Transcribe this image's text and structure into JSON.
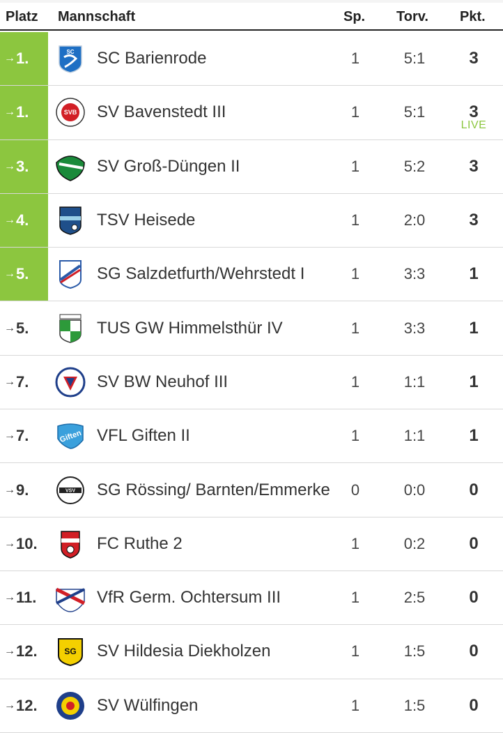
{
  "header": {
    "platz": "Platz",
    "mannschaft": "Mannschaft",
    "sp": "Sp.",
    "torv": "Torv.",
    "pkt": "Pkt."
  },
  "colors": {
    "promotion": "#8cc63f",
    "live": "#8cc63f"
  },
  "arrow": "→",
  "rows": [
    {
      "rank": "1.",
      "team": "SC Barienrode",
      "sp": "1",
      "torv": "5:1",
      "pkt": "3",
      "live": "",
      "promo": true,
      "logo": "sc-barienrode-crest-icon"
    },
    {
      "rank": "1.",
      "team": "SV Bavenstedt III",
      "sp": "1",
      "torv": "5:1",
      "pkt": "3",
      "live": "LIVE",
      "promo": true,
      "logo": "sv-bavenstedt-crest-icon"
    },
    {
      "rank": "3.",
      "team": "SV Groß-Düngen II",
      "sp": "1",
      "torv": "5:2",
      "pkt": "3",
      "live": "",
      "promo": true,
      "logo": "sv-gross-duengen-crest-icon"
    },
    {
      "rank": "4.",
      "team": "TSV Heisede",
      "sp": "1",
      "torv": "2:0",
      "pkt": "3",
      "live": "",
      "promo": true,
      "logo": "tsv-heisede-crest-icon"
    },
    {
      "rank": "5.",
      "team": "SG Salzdetfurth/Wehrstedt I",
      "sp": "1",
      "torv": "3:3",
      "pkt": "1",
      "live": "",
      "promo": true,
      "logo": "sg-salzdetfurth-crest-icon"
    },
    {
      "rank": "5.",
      "team": "TUS GW Himmelsthür IV",
      "sp": "1",
      "torv": "3:3",
      "pkt": "1",
      "live": "",
      "promo": false,
      "logo": "tus-himmelsthuer-crest-icon"
    },
    {
      "rank": "7.",
      "team": "SV BW Neuhof III",
      "sp": "1",
      "torv": "1:1",
      "pkt": "1",
      "live": "",
      "promo": false,
      "logo": "sv-neuhof-crest-icon"
    },
    {
      "rank": "7.",
      "team": "VFL Giften II",
      "sp": "1",
      "torv": "1:1",
      "pkt": "1",
      "live": "",
      "promo": false,
      "logo": "vfl-giften-crest-icon"
    },
    {
      "rank": "9.",
      "team": "SG Rössing/ Barnten/Emmerke",
      "sp": "0",
      "torv": "0:0",
      "pkt": "0",
      "live": "",
      "promo": false,
      "logo": "sg-roessing-crest-icon"
    },
    {
      "rank": "10.",
      "team": "FC Ruthe 2",
      "sp": "1",
      "torv": "0:2",
      "pkt": "0",
      "live": "",
      "promo": false,
      "logo": "fc-ruthe-crest-icon"
    },
    {
      "rank": "11.",
      "team": "VfR Germ. Ochtersum III",
      "sp": "1",
      "torv": "2:5",
      "pkt": "0",
      "live": "",
      "promo": false,
      "logo": "vfr-ochtersum-crest-icon"
    },
    {
      "rank": "12.",
      "team": "SV Hildesia Diekholzen",
      "sp": "1",
      "torv": "1:5",
      "pkt": "0",
      "live": "",
      "promo": false,
      "logo": "sv-hildesia-crest-icon"
    },
    {
      "rank": "12.",
      "team": "SV Wülfingen",
      "sp": "1",
      "torv": "1:5",
      "pkt": "0",
      "live": "",
      "promo": false,
      "logo": "sv-wuelfingen-crest-icon"
    }
  ]
}
